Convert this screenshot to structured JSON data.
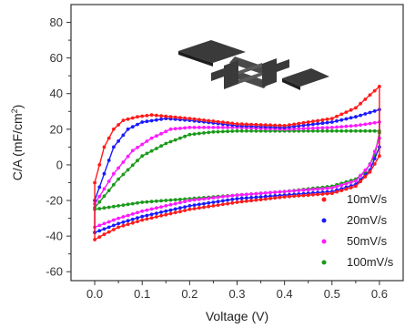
{
  "chart_data": {
    "type": "scatter",
    "title": "",
    "xlabel": "Voltage (V)",
    "ylabel_main": "C/A (mF/cm",
    "ylabel_sup": "2",
    "ylabel_end": ")",
    "xlim": [
      -0.05,
      0.65
    ],
    "ylim": [
      -65,
      90
    ],
    "xticks": [
      0.0,
      0.1,
      0.2,
      0.3,
      0.4,
      0.5,
      0.6
    ],
    "xtick_labels": [
      "0.0",
      "0.1",
      "0.2",
      "0.3",
      "0.4",
      "0.5",
      "0.6"
    ],
    "yticks": [
      -60,
      -40,
      -20,
      0,
      20,
      40,
      60,
      80
    ],
    "ytick_labels": [
      "-60",
      "-40",
      "-20",
      "0",
      "20",
      "40",
      "60",
      "80"
    ],
    "grid": false,
    "legend_position": "bottom-right",
    "inset_icon": "interdigitated-electrode-icon",
    "series": [
      {
        "name": "10mV/s",
        "color": "#ff1a1a",
        "upper": [
          [
            0.0,
            -10
          ],
          [
            0.01,
            0
          ],
          [
            0.02,
            10
          ],
          [
            0.04,
            20
          ],
          [
            0.06,
            25
          ],
          [
            0.09,
            27
          ],
          [
            0.12,
            28
          ],
          [
            0.2,
            26
          ],
          [
            0.3,
            23
          ],
          [
            0.4,
            22
          ],
          [
            0.5,
            26
          ],
          [
            0.55,
            32
          ],
          [
            0.6,
            44
          ]
        ],
        "lower": [
          [
            0.6,
            5
          ],
          [
            0.58,
            -4
          ],
          [
            0.55,
            -12
          ],
          [
            0.5,
            -16
          ],
          [
            0.4,
            -18
          ],
          [
            0.3,
            -21
          ],
          [
            0.2,
            -25
          ],
          [
            0.1,
            -31
          ],
          [
            0.05,
            -35
          ],
          [
            0.02,
            -39
          ],
          [
            0.0,
            -42
          ]
        ]
      },
      {
        "name": "20mV/s",
        "color": "#1a1aff",
        "upper": [
          [
            0.0,
            -20
          ],
          [
            0.02,
            -5
          ],
          [
            0.04,
            10
          ],
          [
            0.07,
            20
          ],
          [
            0.1,
            24
          ],
          [
            0.15,
            26
          ],
          [
            0.2,
            25
          ],
          [
            0.3,
            22
          ],
          [
            0.4,
            21
          ],
          [
            0.5,
            24
          ],
          [
            0.55,
            27
          ],
          [
            0.6,
            31
          ]
        ],
        "lower": [
          [
            0.6,
            10
          ],
          [
            0.58,
            -3
          ],
          [
            0.55,
            -11
          ],
          [
            0.5,
            -15
          ],
          [
            0.4,
            -17
          ],
          [
            0.3,
            -19
          ],
          [
            0.2,
            -23
          ],
          [
            0.1,
            -29
          ],
          [
            0.05,
            -33
          ],
          [
            0.02,
            -36
          ],
          [
            0.0,
            -38
          ]
        ]
      },
      {
        "name": "50mV/s",
        "color": "#ff1aff",
        "upper": [
          [
            0.0,
            -22
          ],
          [
            0.04,
            -5
          ],
          [
            0.08,
            8
          ],
          [
            0.12,
            15
          ],
          [
            0.16,
            20
          ],
          [
            0.2,
            21
          ],
          [
            0.3,
            21
          ],
          [
            0.4,
            20
          ],
          [
            0.5,
            21
          ],
          [
            0.55,
            22
          ],
          [
            0.6,
            24
          ]
        ],
        "lower": [
          [
            0.6,
            15
          ],
          [
            0.58,
            0
          ],
          [
            0.55,
            -9
          ],
          [
            0.5,
            -13
          ],
          [
            0.4,
            -15
          ],
          [
            0.3,
            -17
          ],
          [
            0.2,
            -20
          ],
          [
            0.1,
            -26
          ],
          [
            0.05,
            -30
          ],
          [
            0.0,
            -35
          ]
        ]
      },
      {
        "name": "100mV/s",
        "color": "#1a9a1a",
        "upper": [
          [
            0.0,
            -24
          ],
          [
            0.05,
            -8
          ],
          [
            0.1,
            5
          ],
          [
            0.15,
            12
          ],
          [
            0.2,
            17
          ],
          [
            0.25,
            18.5
          ],
          [
            0.3,
            19
          ],
          [
            0.4,
            19
          ],
          [
            0.5,
            19
          ],
          [
            0.55,
            19
          ],
          [
            0.6,
            19
          ]
        ],
        "lower": [
          [
            0.6,
            18
          ],
          [
            0.59,
            5
          ],
          [
            0.57,
            -4
          ],
          [
            0.55,
            -8
          ],
          [
            0.5,
            -12
          ],
          [
            0.4,
            -15
          ],
          [
            0.3,
            -17
          ],
          [
            0.2,
            -19
          ],
          [
            0.1,
            -21
          ],
          [
            0.05,
            -23
          ],
          [
            0.0,
            -25
          ]
        ]
      }
    ]
  }
}
